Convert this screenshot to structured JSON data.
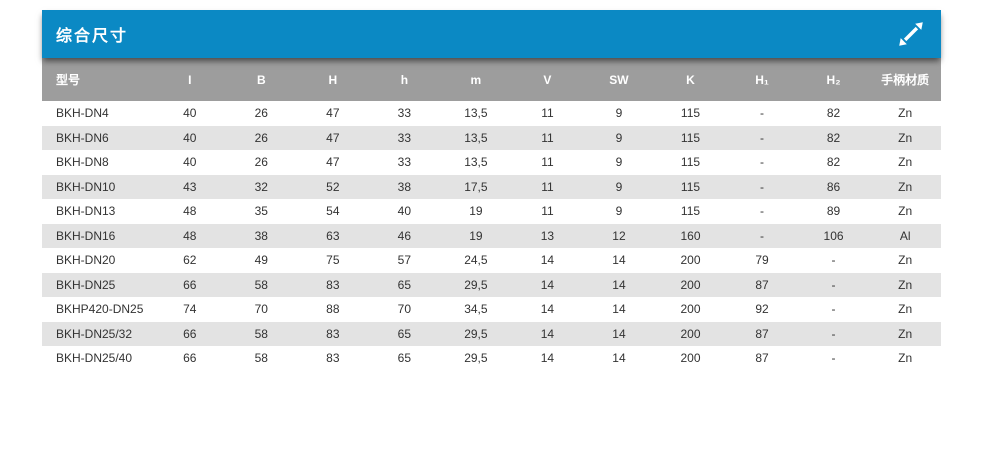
{
  "panel": {
    "title": "综合尺寸",
    "expand_icon": "diagonal-resize-arrow",
    "colors": {
      "title_bar_bg": "#0b89c4",
      "title_text": "#ffffff",
      "header_bg": "#9d9d9d",
      "header_text": "#ffffff",
      "row_stripe_bg": "#e3e3e3",
      "row_text": "#333333"
    },
    "table": {
      "columns": [
        "型号",
        "I",
        "B",
        "H",
        "h",
        "m",
        "V",
        "SW",
        "K",
        "H₁",
        "H₂",
        "手柄材质"
      ],
      "rows": [
        [
          "BKH-DN4",
          "40",
          "26",
          "47",
          "33",
          "13,5",
          "11",
          "9",
          "115",
          "-",
          "82",
          "Zn"
        ],
        [
          "BKH-DN6",
          "40",
          "26",
          "47",
          "33",
          "13,5",
          "11",
          "9",
          "115",
          "-",
          "82",
          "Zn"
        ],
        [
          "BKH-DN8",
          "40",
          "26",
          "47",
          "33",
          "13,5",
          "11",
          "9",
          "115",
          "-",
          "82",
          "Zn"
        ],
        [
          "BKH-DN10",
          "43",
          "32",
          "52",
          "38",
          "17,5",
          "11",
          "9",
          "115",
          "-",
          "86",
          "Zn"
        ],
        [
          "BKH-DN13",
          "48",
          "35",
          "54",
          "40",
          "19",
          "11",
          "9",
          "115",
          "-",
          "89",
          "Zn"
        ],
        [
          "BKH-DN16",
          "48",
          "38",
          "63",
          "46",
          "19",
          "13",
          "12",
          "160",
          "-",
          "106",
          "Al"
        ],
        [
          "BKH-DN20",
          "62",
          "49",
          "75",
          "57",
          "24,5",
          "14",
          "14",
          "200",
          "79",
          "-",
          "Zn"
        ],
        [
          "BKH-DN25",
          "66",
          "58",
          "83",
          "65",
          "29,5",
          "14",
          "14",
          "200",
          "87",
          "-",
          "Zn"
        ],
        [
          "BKHP420-DN25",
          "74",
          "70",
          "88",
          "70",
          "34,5",
          "14",
          "14",
          "200",
          "92",
          "-",
          "Zn"
        ],
        [
          "BKH-DN25/32",
          "66",
          "58",
          "83",
          "65",
          "29,5",
          "14",
          "14",
          "200",
          "87",
          "-",
          "Zn"
        ],
        [
          "BKH-DN25/40",
          "66",
          "58",
          "83",
          "65",
          "29,5",
          "14",
          "14",
          "200",
          "87",
          "-",
          "Zn"
        ]
      ]
    }
  }
}
